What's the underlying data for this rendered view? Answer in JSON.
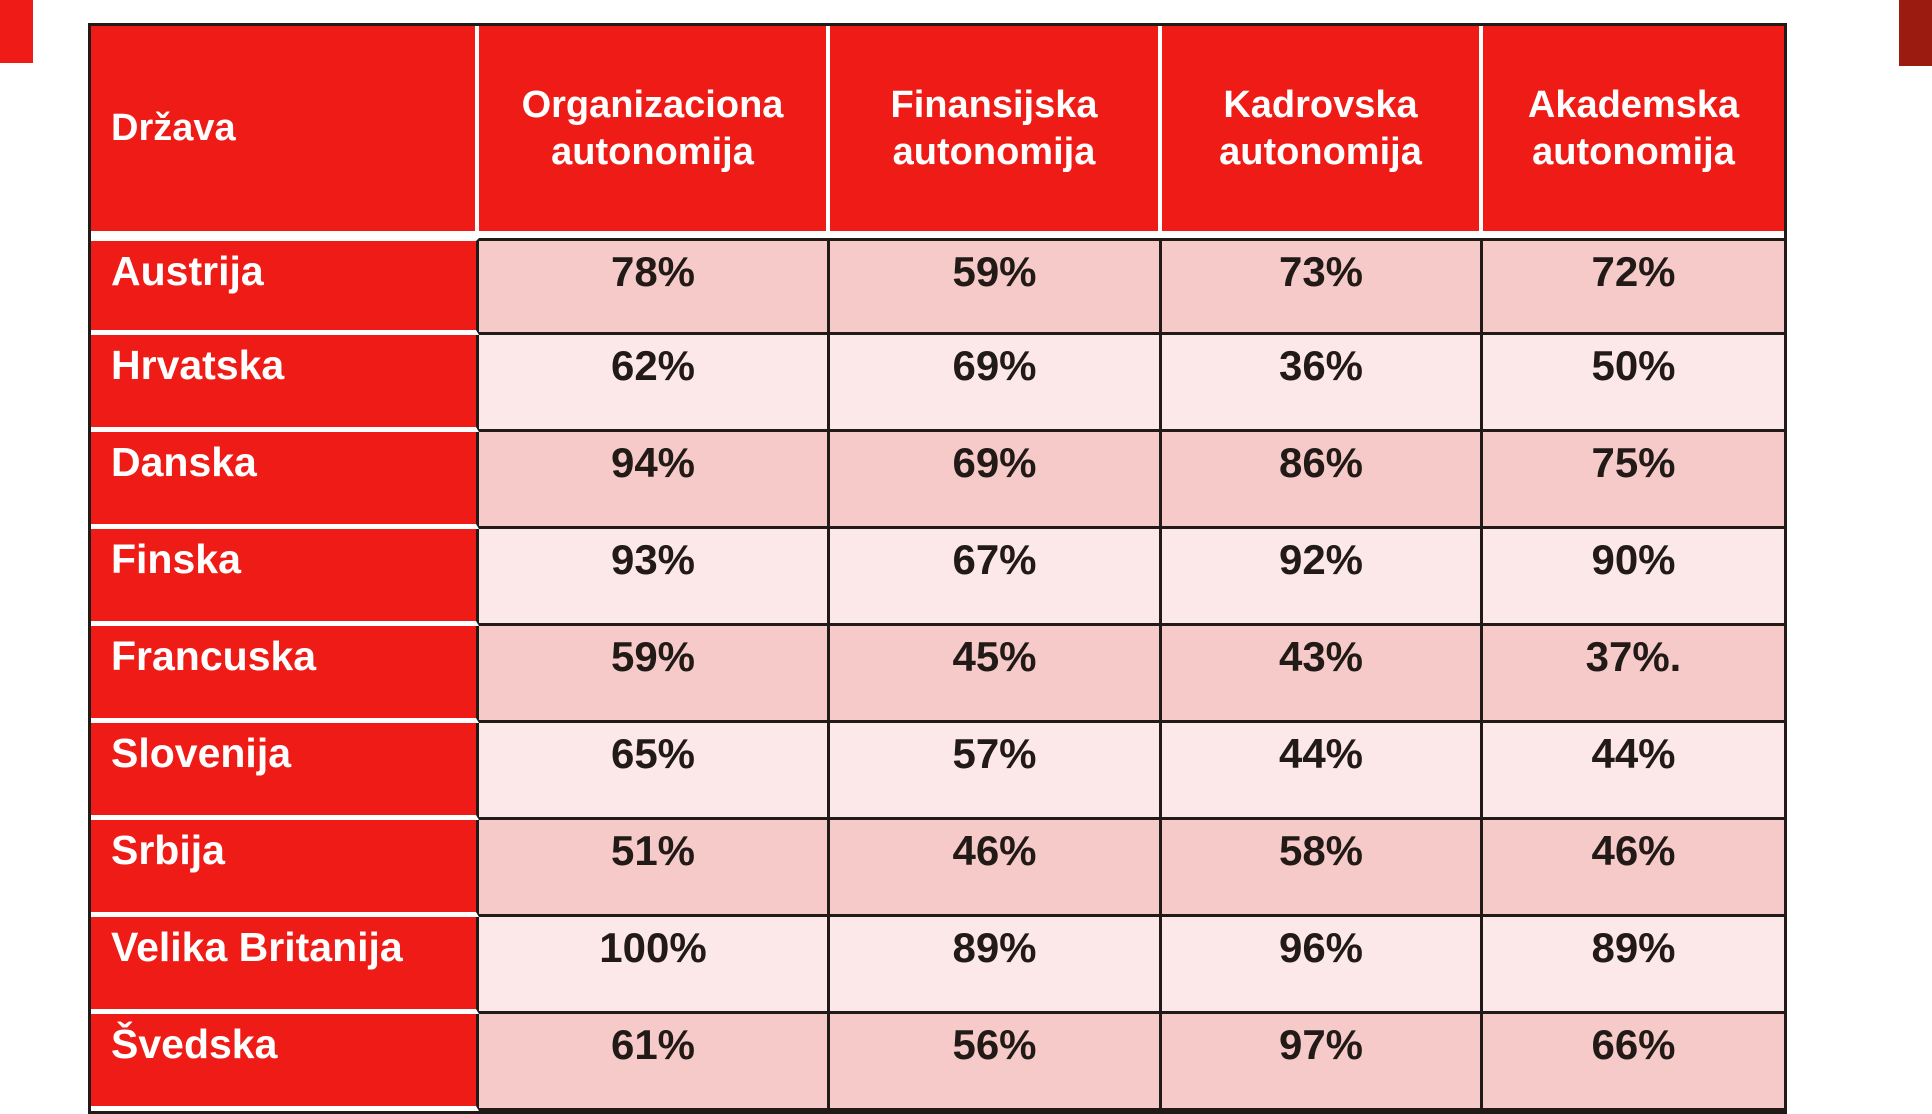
{
  "chart_data": {
    "type": "table",
    "title": "",
    "columns": [
      "Država",
      "Organizaciona autonomija",
      "Finansijska autonomija",
      "Kadrovska autonomija",
      "Akademska autonomija"
    ],
    "rows": [
      [
        "Austrija",
        "78%",
        "59%",
        "73%",
        "72%"
      ],
      [
        "Hrvatska",
        "62%",
        "69%",
        "36%",
        "50%"
      ],
      [
        "Danska",
        "94%",
        "69%",
        "86%",
        "75%"
      ],
      [
        "Finska",
        "93%",
        "67%",
        "92%",
        "90%"
      ],
      [
        "Francuska",
        "59%",
        "45%",
        "43%",
        "37%."
      ],
      [
        "Slovenija",
        "65%",
        "57%",
        "44%",
        "44%"
      ],
      [
        "Srbija",
        "51%",
        "46%",
        "58%",
        "46%"
      ],
      [
        "Velika Britanija",
        "100%",
        "89%",
        "96%",
        "89%"
      ],
      [
        "Švedska",
        "61%",
        "56%",
        "97%",
        "66%"
      ]
    ]
  },
  "colors": {
    "table_red": "#ef1b16",
    "corner_left_red": "#ef1b16",
    "corner_right_dark_red": "#9b1b10",
    "row_pink_dark": "#f7caca",
    "row_pink_light": "#fce8e8",
    "border_black": "#221a17",
    "header_text": "#ffffff",
    "data_text": "#221a17"
  }
}
